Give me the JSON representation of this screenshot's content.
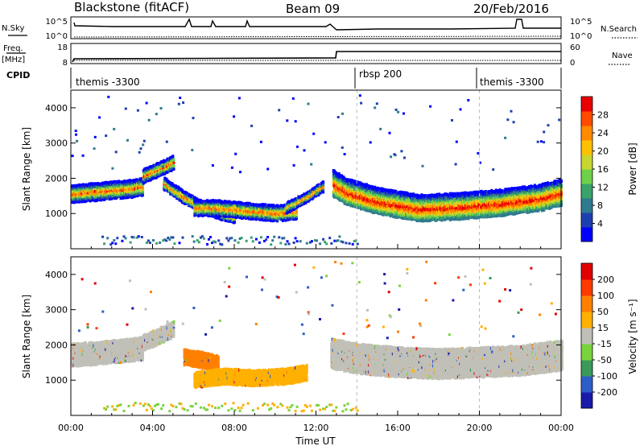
{
  "header": {
    "station": "Blackstone (fitACF)",
    "beam": "Beam 09",
    "date": "20/Feb/2016"
  },
  "top_panels": {
    "nsky_label": "N.Sky",
    "nsky_ticks": [
      "10^5",
      "10^0"
    ],
    "nsearch_label": "N.Search",
    "nsearch_ticks": [
      "10^5",
      "10^0"
    ],
    "freq_label": "Freq.",
    "freq_unit": "[MHz]",
    "freq_ticks": [
      "18",
      "8"
    ],
    "nave_label": "Nave",
    "nave_ticks": [
      "60",
      "0"
    ],
    "cpid_label": "CPID",
    "cpid_segments": [
      {
        "label": "themis -3300",
        "start_h": 0,
        "end_h": 14
      },
      {
        "label": "rbsp 200",
        "start_h": 14,
        "end_h": 20
      },
      {
        "label": "themis -3300",
        "start_h": 20,
        "end_h": 24
      }
    ]
  },
  "chart_data": [
    {
      "type": "heatmap",
      "name": "power",
      "ylabel": "Slant Range [km]",
      "yticks": [
        1000,
        2000,
        3000,
        4000
      ],
      "ylim": [
        0,
        4500
      ],
      "xlim": [
        0,
        24
      ],
      "colorbar": {
        "label": "Power [dB]",
        "ticks": [
          "28",
          "24",
          "20",
          "16",
          "12",
          "8",
          "4"
        ],
        "colors": [
          "#0000ff",
          "#1e3fb0",
          "#2e7a8f",
          "#3aa36a",
          "#6fd14a",
          "#c8d62f",
          "#ffc000",
          "#ff8a00",
          "#ff4a00",
          "#e80000"
        ]
      },
      "bands": [
        {
          "t": [
            0,
            1,
            2,
            3,
            3.5
          ],
          "r": [
            1600,
            1650,
            1700,
            1750,
            1800
          ],
          "w": 450
        },
        {
          "t": [
            3.5,
            4.5,
            5.0
          ],
          "r": [
            2100,
            2350,
            2500
          ],
          "w": 350
        },
        {
          "t": [
            4.5,
            5.5,
            6.5,
            7.5,
            8.0
          ],
          "r": [
            1900,
            1500,
            1200,
            1000,
            950
          ],
          "w": 300
        },
        {
          "t": [
            6.0,
            7.0,
            8.0,
            9.0,
            10.0,
            11.0
          ],
          "r": [
            1200,
            1200,
            1150,
            1100,
            1050,
            1100
          ],
          "w": 400
        },
        {
          "t": [
            10.5,
            11.5,
            12.3
          ],
          "r": [
            1200,
            1500,
            1800
          ],
          "w": 250
        },
        {
          "t": [
            12.8,
            13.5,
            15,
            17,
            19,
            21,
            23,
            24
          ],
          "r": [
            1900,
            1650,
            1400,
            1200,
            1250,
            1350,
            1500,
            1650
          ],
          "w": 700
        }
      ]
    },
    {
      "type": "heatmap",
      "name": "velocity",
      "xlabel": "Time UT",
      "ylabel": "Slant Range [km]",
      "yticks": [
        1000,
        2000,
        3000,
        4000
      ],
      "ylim": [
        0,
        4500
      ],
      "xlim": [
        0,
        24
      ],
      "xticks": [
        "00:00",
        "04:00",
        "08:00",
        "12:00",
        "16:00",
        "20:00",
        "00:00"
      ],
      "colorbar": {
        "label": "Velocity [m s⁻¹]",
        "ticks": [
          "200",
          "100",
          "50",
          "15",
          "-15",
          "-50",
          "-100",
          "-200"
        ],
        "colors": [
          "#1a1aaa",
          "#2e5ec8",
          "#3a9a5a",
          "#7ad33c",
          "#c0c0b8",
          "#ffb000",
          "#ff8000",
          "#ff3a00",
          "#e00000"
        ]
      },
      "bands": [
        {
          "t": [
            0,
            1,
            2,
            3,
            3.5
          ],
          "r": [
            1750,
            1800,
            1850,
            1900,
            1950
          ],
          "w": 600,
          "color": "#c0c0b8"
        },
        {
          "t": [
            3.5,
            4.5,
            5.0
          ],
          "r": [
            2100,
            2350,
            2500
          ],
          "w": 400,
          "color": "#c0c0b8"
        },
        {
          "t": [
            5.5,
            6.5,
            7.2
          ],
          "r": [
            1700,
            1600,
            1500
          ],
          "w": 400,
          "color": "#ff8000"
        },
        {
          "t": [
            6.0,
            7.5,
            9.0,
            10.5,
            11.5
          ],
          "r": [
            1050,
            1150,
            1100,
            1150,
            1250
          ],
          "w": 400,
          "color": "#ffb000"
        },
        {
          "t": [
            12.7,
            14,
            16,
            18,
            20,
            22,
            24
          ],
          "r": [
            1800,
            1650,
            1550,
            1500,
            1550,
            1600,
            1750
          ],
          "w": 800,
          "color": "#c0c0b8"
        }
      ]
    }
  ]
}
